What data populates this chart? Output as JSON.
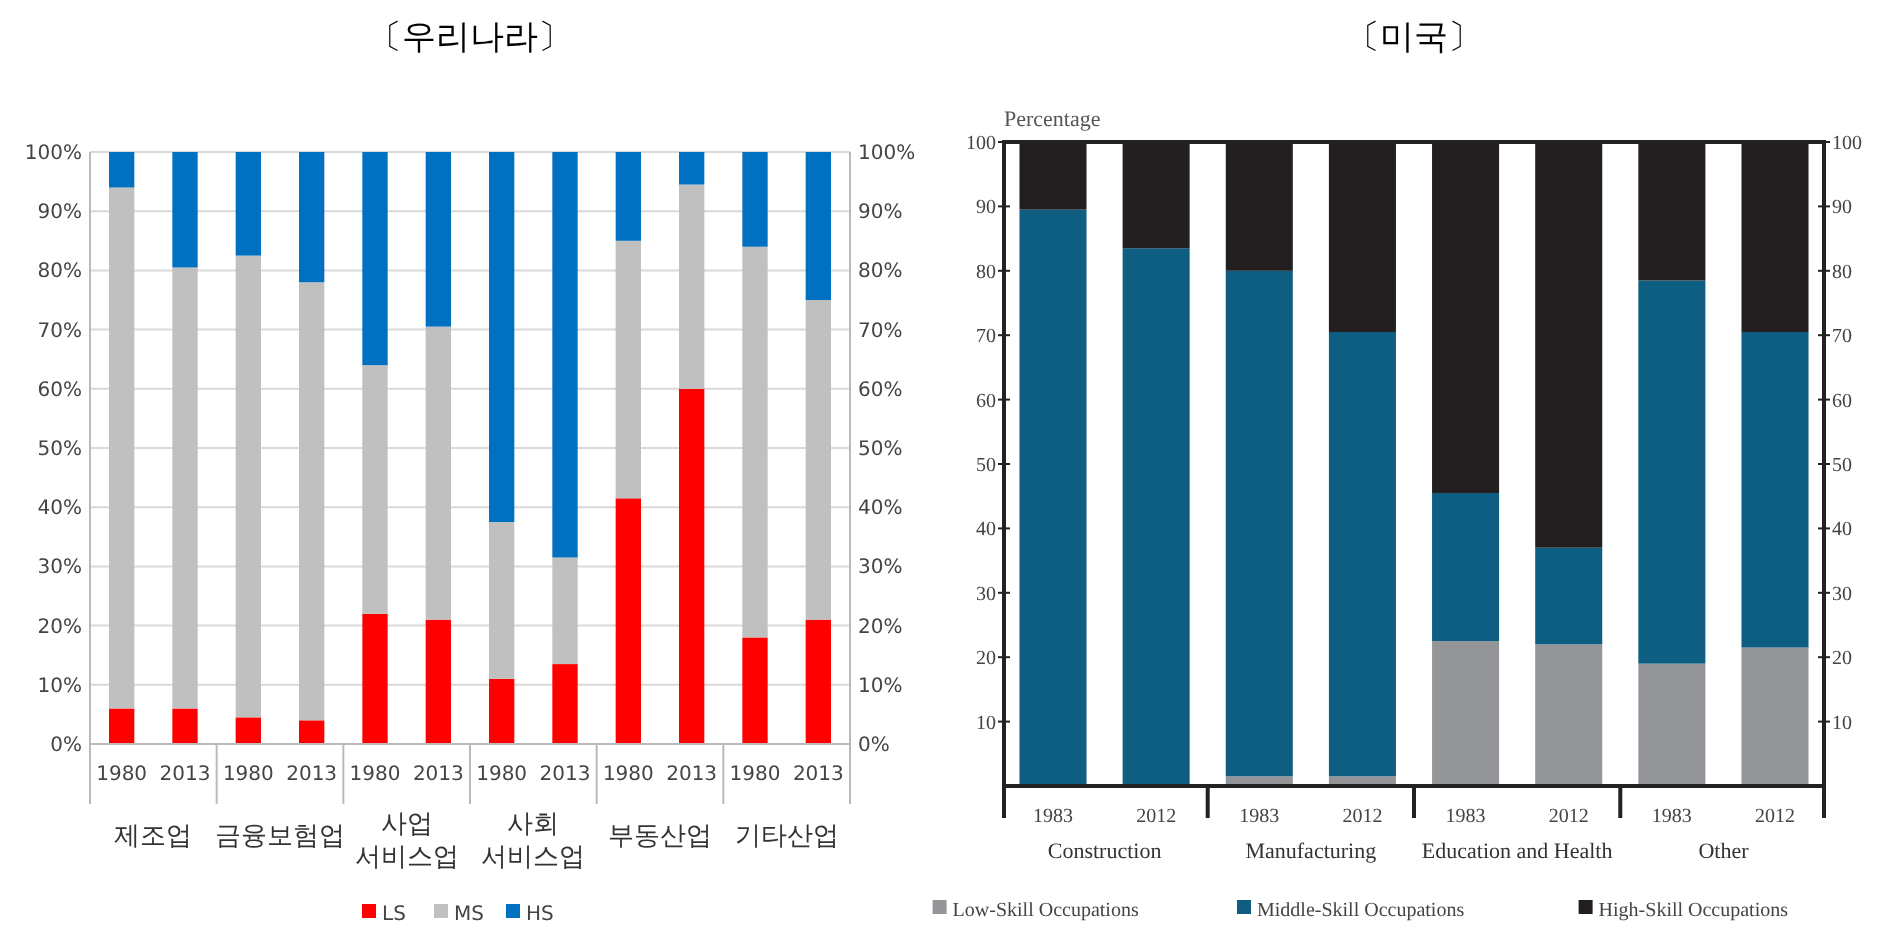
{
  "chart_data": [
    {
      "type": "bar",
      "title": "〔우리나라〕",
      "stacked": true,
      "categories": [
        "1980",
        "2013",
        "1980",
        "2013",
        "1980",
        "2013",
        "1980",
        "2013",
        "1980",
        "2013",
        "1980",
        "2013"
      ],
      "series": [
        {
          "name": "LS",
          "color": "#ff0000",
          "values": [
            6,
            6,
            4.5,
            4,
            22,
            21,
            11,
            13.5,
            41.5,
            60,
            18,
            21
          ]
        },
        {
          "name": "MS",
          "color": "#c0c0c0",
          "values": [
            88,
            74.5,
            78,
            74,
            42,
            49.5,
            26.5,
            18,
            43.5,
            34.5,
            66,
            54
          ]
        },
        {
          "name": "HS",
          "color": "#0070c0",
          "values": [
            6,
            19.5,
            17.5,
            22,
            36,
            29.5,
            62.5,
            68.5,
            15,
            5.5,
            16,
            25
          ]
        }
      ],
      "annotations": [
        "제조업",
        "금융보험업",
        "사업\n서비스업",
        "사회\n서비스업",
        "부동산업",
        "기타산업"
      ],
      "ylim": [
        0,
        100
      ],
      "yticks": [
        {
          "value": 0,
          "label": "0%"
        },
        {
          "value": 10,
          "label": "10%"
        },
        {
          "value": 20,
          "label": "20%"
        },
        {
          "value": 30,
          "label": "30%"
        },
        {
          "value": 40,
          "label": "40%"
        },
        {
          "value": 50,
          "label": "50%"
        },
        {
          "value": 60,
          "label": "60%"
        },
        {
          "value": 70,
          "label": "70%"
        },
        {
          "value": 80,
          "label": "80%"
        },
        {
          "value": 90,
          "label": "90%"
        },
        {
          "value": 100,
          "label": "100%"
        }
      ],
      "y2lim": [
        0,
        100
      ],
      "y2ticks": [
        {
          "value": 0,
          "label": "0%"
        },
        {
          "value": 10,
          "label": "10%"
        },
        {
          "value": 20,
          "label": "20%"
        },
        {
          "value": 30,
          "label": "30%"
        },
        {
          "value": 40,
          "label": "40%"
        },
        {
          "value": 50,
          "label": "50%"
        },
        {
          "value": 60,
          "label": "60%"
        },
        {
          "value": 70,
          "label": "70%"
        },
        {
          "value": 80,
          "label": "80%"
        },
        {
          "value": 90,
          "label": "90%"
        },
        {
          "value": 100,
          "label": "100%"
        }
      ],
      "grid": "y",
      "legend": "bottom"
    },
    {
      "type": "bar",
      "title": "〔미국〕",
      "stacked": true,
      "ylabel": "Percentage",
      "categories": [
        "1983",
        "2012",
        "1983",
        "2012",
        "1983",
        "2012",
        "1983",
        "2012"
      ],
      "series": [
        {
          "name": "Low-Skill Occupations",
          "color": "#939598",
          "values": [
            0,
            0,
            1.5,
            1.5,
            22.5,
            22,
            19,
            21.5
          ]
        },
        {
          "name": "Middle-Skill Occupations",
          "color": "#0d5e80",
          "values": [
            89.5,
            83.5,
            78.5,
            69,
            23,
            15,
            59.5,
            49
          ]
        },
        {
          "name": "High-Skill Occupations",
          "color": "#231f20",
          "values": [
            10.5,
            16.5,
            20,
            29.5,
            54.5,
            63,
            21.5,
            29.5
          ]
        }
      ],
      "annotations": [
        "Construction",
        "Manufacturing",
        "Education and Health",
        "Other"
      ],
      "ylim": [
        0,
        100
      ],
      "yticks": [
        10,
        20,
        30,
        40,
        50,
        60,
        70,
        80,
        90,
        100
      ],
      "y2lim": [
        0,
        100
      ],
      "y2ticks": [
        10,
        20,
        30,
        40,
        50,
        60,
        70,
        80,
        90,
        100
      ],
      "grid": false,
      "legend": "bottom"
    }
  ]
}
